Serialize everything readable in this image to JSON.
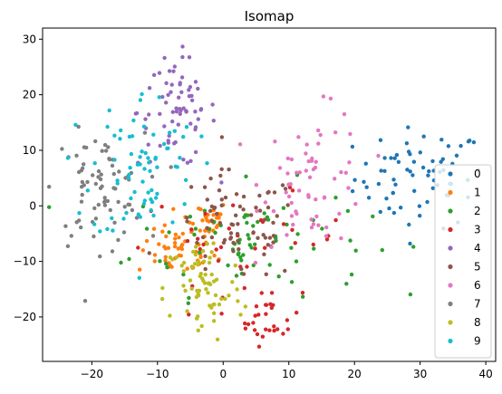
{
  "chart_data": {
    "type": "scatter",
    "title": "Isomap",
    "xlabel": "",
    "ylabel": "",
    "xlim": [
      -27.5,
      41.5
    ],
    "ylim": [
      -28,
      32
    ],
    "xticks": [
      -20,
      -10,
      0,
      10,
      20,
      30,
      40
    ],
    "yticks": [
      -20,
      -10,
      0,
      10,
      20,
      30
    ],
    "grid": false,
    "legend_position": "lower-right",
    "colors": [
      "#1f77b4",
      "#ff7f0e",
      "#2ca02c",
      "#d62728",
      "#9467bd",
      "#8c564b",
      "#e377c2",
      "#7f7f7f",
      "#bcbd22",
      "#17becf"
    ],
    "series": [
      {
        "name": "0",
        "clusters": [
          {
            "cx": 30,
            "cy": 5,
            "sx": 5,
            "sy": 4.5,
            "n": 70
          }
        ]
      },
      {
        "name": "1",
        "clusters": [
          {
            "cx": -7,
            "cy": -8.5,
            "sx": 3,
            "sy": 2,
            "n": 45
          },
          {
            "cx": -3,
            "cy": -2.5,
            "sx": 2,
            "sy": 1.8,
            "n": 35
          }
        ]
      },
      {
        "name": "2",
        "clusters": [
          {
            "cx": 4,
            "cy": -6,
            "sx": 9,
            "sy": 5,
            "n": 75
          }
        ]
      },
      {
        "name": "3",
        "clusters": [
          {
            "cx": 7,
            "cy": -20,
            "sx": 2.5,
            "sy": 2.5,
            "n": 30
          },
          {
            "cx": 3,
            "cy": -6,
            "sx": 8,
            "sy": 4,
            "n": 35
          }
        ]
      },
      {
        "name": "4",
        "clusters": [
          {
            "cx": -7,
            "cy": 17,
            "sx": 3,
            "sy": 5,
            "n": 70
          }
        ]
      },
      {
        "name": "5",
        "clusters": [
          {
            "cx": 2,
            "cy": -4,
            "sx": 5,
            "sy": 5,
            "n": 75
          }
        ]
      },
      {
        "name": "6",
        "clusters": [
          {
            "cx": 14,
            "cy": 5,
            "sx": 4,
            "sy": 6,
            "n": 65
          }
        ]
      },
      {
        "name": "7",
        "clusters": [
          {
            "cx": -19,
            "cy": 3,
            "sx": 3.5,
            "sy": 5,
            "n": 75
          }
        ]
      },
      {
        "name": "8",
        "clusters": [
          {
            "cx": -3,
            "cy": -15,
            "sx": 3,
            "sy": 5,
            "n": 70
          }
        ]
      },
      {
        "name": "9",
        "clusters": [
          {
            "cx": -12,
            "cy": 7,
            "sx": 4,
            "sy": 7,
            "n": 75
          }
        ]
      }
    ]
  }
}
